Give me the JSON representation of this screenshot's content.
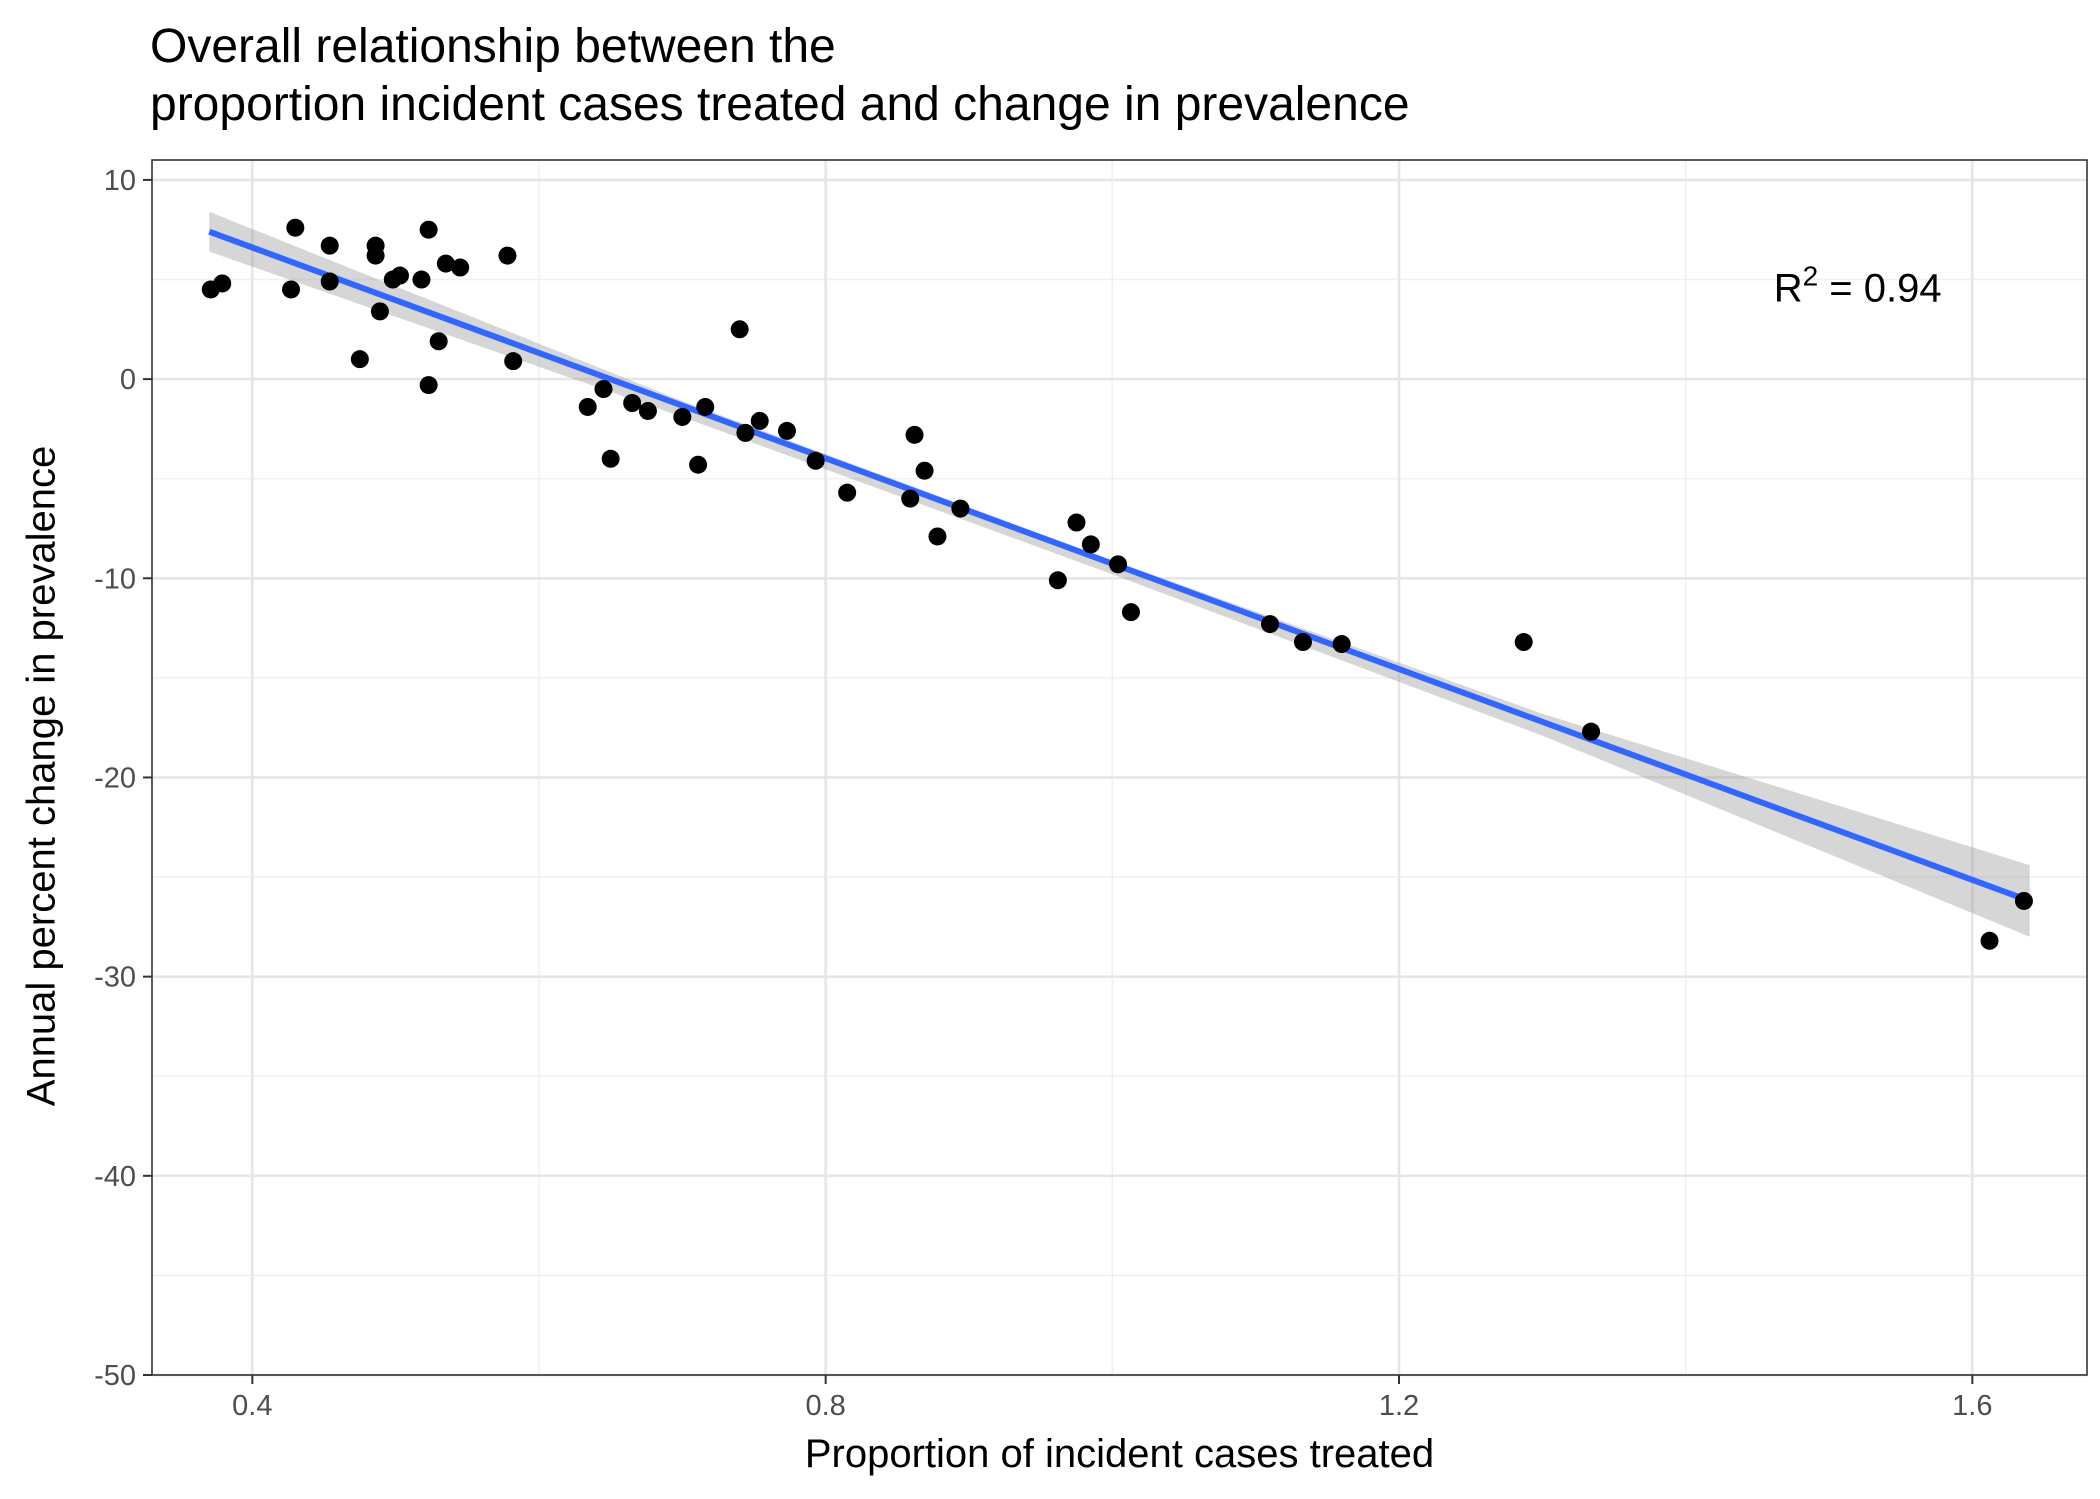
{
  "chart_data": {
    "type": "scatter",
    "title_lines": [
      "Overall relationship between the",
      "proportion incident cases treated and change in prevalence"
    ],
    "xlabel": "Proportion of incident cases treated",
    "ylabel": "Annual percent change in prevalence",
    "xlim": [
      0.33,
      1.68
    ],
    "ylim": [
      -50,
      11
    ],
    "x_ticks": [
      0.4,
      0.8,
      1.2,
      1.6
    ],
    "x_tick_labels": [
      "0.4",
      "0.8",
      "1.2",
      "1.6"
    ],
    "y_ticks": [
      10,
      0,
      -10,
      -20,
      -30,
      -40,
      -50
    ],
    "y_tick_labels": [
      "10",
      "0",
      "-10",
      "-20",
      "-30",
      "-40",
      "-50"
    ],
    "grid": true,
    "points": [
      {
        "x": 0.371,
        "y": 4.5
      },
      {
        "x": 0.379,
        "y": 4.8
      },
      {
        "x": 0.43,
        "y": 7.6
      },
      {
        "x": 0.427,
        "y": 4.5
      },
      {
        "x": 0.454,
        "y": 6.7
      },
      {
        "x": 0.454,
        "y": 4.9
      },
      {
        "x": 0.475,
        "y": 1.0
      },
      {
        "x": 0.486,
        "y": 6.7
      },
      {
        "x": 0.486,
        "y": 6.2
      },
      {
        "x": 0.489,
        "y": 3.4
      },
      {
        "x": 0.498,
        "y": 5.0
      },
      {
        "x": 0.503,
        "y": 5.2
      },
      {
        "x": 0.518,
        "y": 5.0
      },
      {
        "x": 0.523,
        "y": 7.5
      },
      {
        "x": 0.523,
        "y": -0.3
      },
      {
        "x": 0.53,
        "y": 1.9
      },
      {
        "x": 0.535,
        "y": 5.8
      },
      {
        "x": 0.545,
        "y": 5.6
      },
      {
        "x": 0.578,
        "y": 6.2
      },
      {
        "x": 0.582,
        "y": 0.9
      },
      {
        "x": 0.634,
        "y": -1.4
      },
      {
        "x": 0.645,
        "y": -0.5
      },
      {
        "x": 0.65,
        "y": -4.0
      },
      {
        "x": 0.665,
        "y": -1.2
      },
      {
        "x": 0.676,
        "y": -1.6
      },
      {
        "x": 0.7,
        "y": -1.9
      },
      {
        "x": 0.711,
        "y": -4.3
      },
      {
        "x": 0.716,
        "y": -1.4
      },
      {
        "x": 0.74,
        "y": 2.5
      },
      {
        "x": 0.744,
        "y": -2.7
      },
      {
        "x": 0.754,
        "y": -2.1
      },
      {
        "x": 0.773,
        "y": -2.6
      },
      {
        "x": 0.793,
        "y": -4.1
      },
      {
        "x": 0.815,
        "y": -5.7
      },
      {
        "x": 0.859,
        "y": -6.0
      },
      {
        "x": 0.862,
        "y": -2.8
      },
      {
        "x": 0.869,
        "y": -4.6
      },
      {
        "x": 0.878,
        "y": -7.9
      },
      {
        "x": 0.894,
        "y": -6.5
      },
      {
        "x": 0.962,
        "y": -10.1
      },
      {
        "x": 0.975,
        "y": -7.2
      },
      {
        "x": 0.985,
        "y": -8.3
      },
      {
        "x": 1.004,
        "y": -9.3
      },
      {
        "x": 1.013,
        "y": -11.7
      },
      {
        "x": 1.11,
        "y": -12.3
      },
      {
        "x": 1.133,
        "y": -13.2
      },
      {
        "x": 1.16,
        "y": -13.3
      },
      {
        "x": 1.287,
        "y": -13.2
      },
      {
        "x": 1.334,
        "y": -17.7
      },
      {
        "x": 1.612,
        "y": -28.2
      },
      {
        "x": 1.636,
        "y": -26.2
      }
    ],
    "fit_line": {
      "x": [
        0.37,
        1.64
      ],
      "y": [
        7.4,
        -26.2
      ]
    },
    "confidence_band": {
      "x": [
        0.37,
        0.7,
        1.0,
        1.3,
        1.64
      ],
      "lower": [
        6.4,
        -1.9,
        -9.8,
        -17.9,
        -28.0
      ],
      "upper": [
        8.4,
        -1.1,
        -9.1,
        -16.8,
        -24.4
      ]
    },
    "annotation": {
      "base": "R",
      "superscript": "2",
      "rest": " = 0.94",
      "x": 1.52,
      "y": 4.5
    }
  }
}
